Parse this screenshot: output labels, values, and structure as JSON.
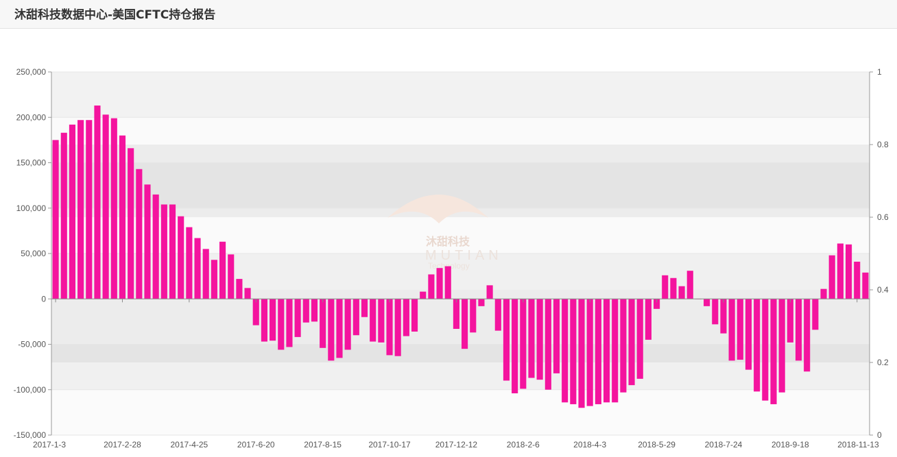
{
  "header": {
    "title": "沐甜科技数据中心-美国CFTC持仓报告"
  },
  "watermark": {
    "cn": "沐甜科技",
    "en": "MUTIAN",
    "sub": "Technology"
  },
  "colors": {
    "bar": "#f4149e",
    "header_bg": "#f7f7f7"
  },
  "chart_data": {
    "type": "bar",
    "x_tick_labels": [
      "2017-1-3",
      "2017-2-28",
      "2017-4-25",
      "2017-6-20",
      "2017-8-15",
      "2017-10-17",
      "2017-12-12",
      "2018-2-6",
      "2018-4-3",
      "2018-5-29",
      "2018-7-24",
      "2018-9-18",
      "2018-11-13"
    ],
    "y_left_ticks": [
      "250,000",
      "200,000",
      "150,000",
      "100,000",
      "50,000",
      "0",
      "-50,000",
      "-100,000",
      "-150,000"
    ],
    "y_right_ticks": [
      "1",
      "0.8",
      "0.6",
      "0.4",
      "0.2",
      "0"
    ],
    "ylim": [
      -150000,
      250000
    ],
    "y_right_lim": [
      0,
      1
    ],
    "grid": true,
    "values": [
      175000,
      183000,
      192000,
      197000,
      197000,
      213000,
      203000,
      199000,
      180000,
      166000,
      143000,
      126000,
      115000,
      104000,
      104000,
      91000,
      79000,
      67000,
      55000,
      43000,
      63000,
      49000,
      22000,
      12000,
      -29000,
      -47000,
      -46000,
      -56000,
      -53000,
      -42000,
      -26000,
      -25000,
      -54000,
      -68000,
      -65000,
      -56000,
      -40000,
      -20000,
      -47000,
      -48000,
      -62000,
      -63000,
      -41000,
      -36000,
      8000,
      27000,
      34000,
      36000,
      -33000,
      -55000,
      -37000,
      -8000,
      15000,
      -35000,
      -90000,
      -104000,
      -99000,
      -87000,
      -89000,
      -100000,
      -82000,
      -114000,
      -116000,
      -120000,
      -118000,
      -116000,
      -114000,
      -114000,
      -103000,
      -95000,
      -88000,
      -45000,
      -11000,
      26000,
      23000,
      14000,
      31000,
      0,
      -8000,
      -28000,
      -38000,
      -68000,
      -67000,
      -78000,
      -102000,
      -112000,
      -116000,
      -103000,
      -48000,
      -68000,
      -80000,
      -34000,
      11000,
      48000,
      61000,
      60000,
      41000,
      29000
    ]
  }
}
